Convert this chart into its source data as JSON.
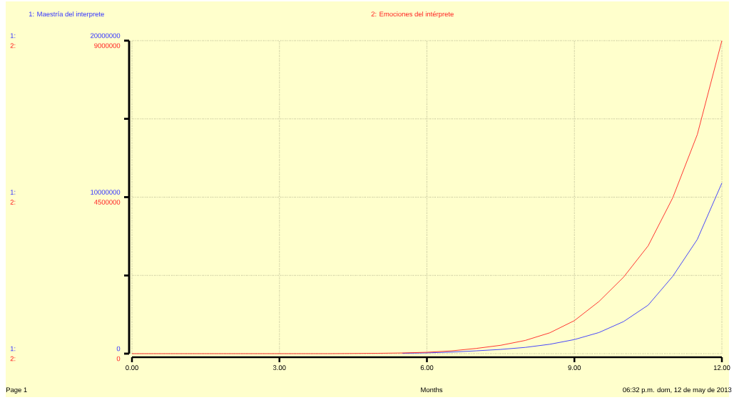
{
  "chart_data": {
    "type": "line",
    "xlabel": "Months",
    "legend": "top",
    "grid": true,
    "x": [
      0,
      1,
      2,
      3,
      4,
      5,
      5.5,
      6,
      6.5,
      7,
      7.5,
      8,
      8.5,
      9,
      9.5,
      10,
      10.5,
      11,
      11.5,
      12
    ],
    "series": [
      {
        "name": "1: Maestría del interprete",
        "color": "#3333ff",
        "values": [
          null,
          null,
          null,
          null,
          null,
          null,
          25000,
          50000,
          100000,
          180000,
          270000,
          400000,
          600000,
          900000,
          1350000,
          2050000,
          3100000,
          4940000,
          7300000,
          10900000
        ]
      },
      {
        "name": "2: Emociones del intérprete",
        "color": "#ff2020",
        "axis": "y2",
        "values": [
          0,
          0,
          0,
          0,
          0,
          10000,
          20000,
          40000,
          80000,
          150000,
          240000,
          380000,
          600000,
          950000,
          1500000,
          2200000,
          3100000,
          4480000,
          6300000,
          9000000
        ]
      }
    ],
    "xlim": [
      0,
      12
    ],
    "xticks": [
      {
        "value": 0,
        "label": "0.00"
      },
      {
        "value": 3,
        "label": "3.00"
      },
      {
        "value": 6,
        "label": "6.00"
      },
      {
        "value": 9,
        "label": "9.00"
      },
      {
        "value": 12,
        "label": "12.00"
      }
    ],
    "ylim": [
      0,
      20000000
    ],
    "yticks": [
      0,
      {
        "value": 5000000,
        "label": null
      },
      10000000,
      {
        "value": 15000000,
        "label": null
      },
      20000000
    ],
    "y2lim": [
      0,
      9000000
    ],
    "y2ticks": [
      0,
      {
        "value": 2250000,
        "label": null
      },
      4500000,
      {
        "value": 6750000,
        "label": null
      },
      9000000
    ],
    "annotations": [
      "Page 1",
      "06:32 p.m.   dom, 12 de may de 2013",
      "1:",
      "2:"
    ]
  }
}
